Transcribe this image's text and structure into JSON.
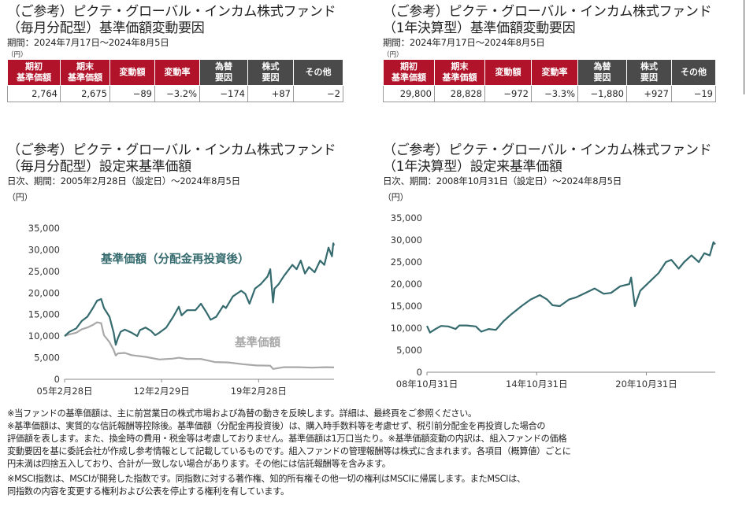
{
  "left_table": {
    "title_line1": "（ご参考）ピクテ・グローバル・インカム株式ファンド",
    "title_line2": "（毎月分配型）基準価額変動要因",
    "period": "期間：2024年7月17日～2024年8月5日",
    "unit": "（円）",
    "headers": [
      {
        "line1": "期初",
        "line2": "基準価額",
        "style": "red"
      },
      {
        "line1": "期末",
        "line2": "基準価額",
        "style": "red"
      },
      {
        "line1": "変動額",
        "line2": "",
        "style": "red"
      },
      {
        "line1": "変動率",
        "line2": "",
        "style": "red"
      },
      {
        "line1": "為替",
        "line2": "要因",
        "style": "gray"
      },
      {
        "line1": "株式",
        "line2": "要因",
        "style": "gray"
      },
      {
        "line1": "その他",
        "line2": "",
        "style": "gray"
      }
    ],
    "values": [
      "2,764",
      "2,675",
      "−89",
      "−3.2%",
      "−174",
      "+87",
      "−2"
    ]
  },
  "right_table": {
    "title_line1": "（ご参考）ピクテ・グローバル・インカム株式ファンド",
    "title_line2": "（1年決算型）基準価額変動要因",
    "period": "期間：2024年7月17日～2024年8月5日",
    "unit": "（円）",
    "headers": [
      {
        "line1": "期初",
        "line2": "基準価額",
        "style": "red"
      },
      {
        "line1": "期末",
        "line2": "基準価額",
        "style": "red"
      },
      {
        "line1": "変動額",
        "line2": "",
        "style": "red"
      },
      {
        "line1": "変動率",
        "line2": "",
        "style": "red"
      },
      {
        "line1": "為替",
        "line2": "要因",
        "style": "gray"
      },
      {
        "line1": "株式",
        "line2": "要因",
        "style": "gray"
      },
      {
        "line1": "その他",
        "line2": "",
        "style": "gray"
      }
    ],
    "values": [
      "29,800",
      "28,828",
      "−972",
      "−3.3%",
      "−1,880",
      "+927",
      "−19"
    ]
  },
  "left_chart_section": {
    "title_line1": "（ご参考）ピクテ・グローバル・インカム株式ファンド",
    "title_line2": "（毎月分配型）設定来基準価額",
    "period": "日次、期間：2005年2月28日（設定日）～2024年8月5日",
    "unit": "（円）"
  },
  "right_chart_section": {
    "title_line1": "（ご参考）ピクテ・グローバル・インカム株式ファンド",
    "title_line2": "（1年決算型）設定来基準価額",
    "period": "日次、期間：2008年10月31日（設定日）～2024年8月5日",
    "unit": "（円）"
  },
  "chart_data": [
    {
      "type": "line",
      "title": "",
      "xlabel": "",
      "ylabel": "（円）",
      "ylim": [
        0,
        35000
      ],
      "yticks": [
        "0",
        "5,000",
        "10,000",
        "15,000",
        "20,000",
        "25,000",
        "30,000",
        "35,000"
      ],
      "ytick_values": [
        0,
        5000,
        10000,
        15000,
        20000,
        25000,
        30000,
        35000
      ],
      "xlim": [
        2005.16,
        2024.6
      ],
      "xticks": [
        "05年2月28日",
        "12年2月29日",
        "19年2月28日"
      ],
      "xtick_values": [
        2005.16,
        2012.16,
        2019.16
      ],
      "grid": false,
      "series": [
        {
          "name": "基準価額（分配金再投資後）",
          "color": "#356b6e",
          "x": [
            2005.16,
            2005.5,
            2006.0,
            2006.4,
            2006.8,
            2007.2,
            2007.5,
            2007.8,
            2008.0,
            2008.4,
            2008.7,
            2008.85,
            2009.0,
            2009.2,
            2009.5,
            2010.0,
            2010.4,
            2010.6,
            2011.0,
            2011.4,
            2011.7,
            2012.0,
            2012.5,
            2013.0,
            2013.4,
            2013.6,
            2014.0,
            2014.6,
            2015.0,
            2015.4,
            2015.7,
            2016.1,
            2016.6,
            2016.8,
            2017.3,
            2017.9,
            2018.2,
            2018.5,
            2018.9,
            2019.3,
            2019.8,
            2020.0,
            2020.2,
            2020.3,
            2020.6,
            2021.0,
            2021.6,
            2021.9,
            2022.2,
            2022.5,
            2022.8,
            2023.2,
            2023.6,
            2023.9,
            2024.2,
            2024.45,
            2024.55,
            2024.6
          ],
          "values": [
            10000,
            11000,
            11800,
            13500,
            14500,
            16500,
            18200,
            18600,
            16500,
            14500,
            10800,
            8000,
            9500,
            11000,
            11500,
            10800,
            10000,
            11400,
            12000,
            11200,
            10200,
            10800,
            12000,
            14500,
            16800,
            14800,
            16000,
            16000,
            17500,
            15500,
            13800,
            14500,
            17000,
            16500,
            19200,
            20500,
            19800,
            17500,
            21000,
            22000,
            23800,
            25500,
            17800,
            21000,
            22000,
            24000,
            26500,
            25500,
            27500,
            24500,
            26000,
            24800,
            27500,
            26500,
            30500,
            28500,
            31500,
            31000
          ]
        },
        {
          "name": "基準価額",
          "color": "#a8a8a8",
          "x": [
            2005.16,
            2005.5,
            2006.0,
            2006.4,
            2006.8,
            2007.2,
            2007.5,
            2007.8,
            2008.0,
            2008.4,
            2008.7,
            2008.85,
            2009.0,
            2009.5,
            2010.0,
            2011.0,
            2012.0,
            2013.0,
            2013.4,
            2014.0,
            2015.0,
            2016.0,
            2017.0,
            2018.0,
            2019.0,
            2020.0,
            2020.2,
            2021.0,
            2022.0,
            2023.0,
            2024.0,
            2024.6
          ],
          "values": [
            10000,
            10400,
            10800,
            11600,
            12000,
            12600,
            13200,
            13000,
            10200,
            8600,
            6800,
            5500,
            6000,
            6100,
            5600,
            5200,
            4600,
            4800,
            5000,
            4700,
            4700,
            4000,
            3900,
            3500,
            3200,
            3150,
            2400,
            2800,
            2800,
            2700,
            2800,
            2750
          ]
        }
      ],
      "annotations": [
        "基準価額（分配金再投資後）",
        "基準価額"
      ]
    },
    {
      "type": "line",
      "title": "",
      "xlabel": "",
      "ylabel": "（円）",
      "ylim": [
        0,
        35000
      ],
      "yticks": [
        "0",
        "5,000",
        "10,000",
        "15,000",
        "20,000",
        "25,000",
        "30,000",
        "35,000"
      ],
      "ytick_values": [
        0,
        5000,
        10000,
        15000,
        20000,
        25000,
        30000,
        35000
      ],
      "xlim": [
        2008.83,
        2024.6
      ],
      "xticks": [
        "08年10月31日",
        "14年10月31日",
        "20年10月31日"
      ],
      "xtick_values": [
        2008.83,
        2014.83,
        2020.83
      ],
      "grid": false,
      "series": [
        {
          "name": "",
          "color": "#356b6e",
          "x": [
            2008.83,
            2009.0,
            2009.3,
            2009.6,
            2010.0,
            2010.4,
            2010.6,
            2011.0,
            2011.5,
            2011.8,
            2012.2,
            2012.6,
            2013.0,
            2013.4,
            2013.7,
            2014.0,
            2014.5,
            2015.0,
            2015.4,
            2015.7,
            2016.1,
            2016.6,
            2017.0,
            2017.5,
            2018.0,
            2018.5,
            2018.9,
            2019.4,
            2019.9,
            2020.0,
            2020.2,
            2020.5,
            2021.0,
            2021.5,
            2021.9,
            2022.2,
            2022.6,
            2022.9,
            2023.3,
            2023.7,
            2024.0,
            2024.3,
            2024.5,
            2024.6
          ],
          "values": [
            10500,
            9000,
            9800,
            10500,
            10400,
            9800,
            10600,
            10600,
            10400,
            9200,
            9800,
            9600,
            11500,
            13000,
            14000,
            15000,
            16500,
            17500,
            16500,
            15200,
            15000,
            16500,
            17000,
            18000,
            19000,
            17800,
            18000,
            19500,
            20000,
            21500,
            15000,
            18500,
            20500,
            22500,
            25000,
            25500,
            23500,
            25000,
            26500,
            25000,
            27000,
            26500,
            29500,
            29000
          ]
        }
      ]
    }
  ],
  "notes": [
    "※当ファンドの基準価額は、主に前営業日の株式市場および為替の動きを反映します。詳細は、最終頁をご参照ください。",
    "※基準価額は、実質的な信託報酬等控除後。基準価額（分配金再投資後）は、購入時手数料等を考慮せず、税引前分配金を再投資した場合の",
    "評価額を表します。また、換金時の費用・税金等は考慮しておりません。基準価額は1万口当たり。※基準価額変動の内訳は、組入ファンドの価格",
    "変動要因を基に委託会社が作成し参考情報として記載しているものです。組入ファンドの管理報酬等は株式に含まれます。各項目（概算値）ごとに",
    "円未満は四捨五入しており、合計が一致しない場合があります。その他には信託報酬等を含みます。",
    "※MSCI指数は、MSCIが開発した指数です。同指数に対する著作権、知的所有権その他一切の権利はMSCIに帰属します。またMSCIは、",
    "同指数の内容を変更する権利および公表を停止する権利を有しています。"
  ]
}
